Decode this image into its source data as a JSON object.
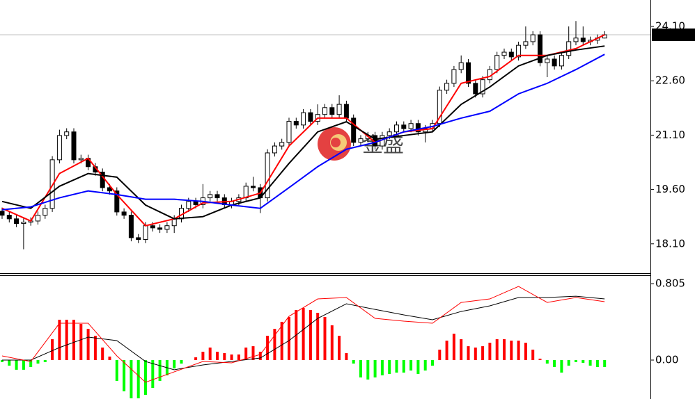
{
  "chart_data": [
    {
      "type": "candlestick",
      "open": [
        19.0,
        18.89,
        18.79,
        18.66,
        18.7,
        18.73,
        18.89,
        19.08,
        20.42,
        21.09,
        21.19,
        20.42,
        20.46,
        20.23,
        20.08,
        19.65,
        19.56,
        18.98,
        18.89,
        18.27,
        18.22,
        18.6,
        18.54,
        18.5,
        18.6,
        18.79,
        19.08,
        19.27,
        19.18,
        19.37,
        19.46,
        19.37,
        19.18,
        19.27,
        19.37,
        19.69,
        19.65,
        19.37,
        20.61,
        20.8,
        20.9,
        21.48,
        21.38,
        21.72,
        21.48,
        21.67,
        21.86,
        21.67,
        21.95,
        21.57,
        20.9,
        21.0,
        21.09,
        20.8,
        21.09,
        21.19,
        21.38,
        21.28,
        21.42,
        21.19,
        21.28,
        21.42,
        22.34,
        22.53,
        22.91,
        23.1,
        22.53,
        22.24,
        22.63,
        22.91,
        23.3,
        23.39,
        23.26,
        23.58,
        23.68,
        23.87,
        23.1,
        23.2,
        23.01,
        23.3,
        23.68,
        23.78,
        23.68,
        23.72,
        23.78
      ],
      "high": [
        19.1,
        18.99,
        18.89,
        18.8,
        18.83,
        18.99,
        19.18,
        20.52,
        21.25,
        21.29,
        21.29,
        20.56,
        20.56,
        20.33,
        20.18,
        19.75,
        19.66,
        19.08,
        18.99,
        18.37,
        18.7,
        18.7,
        18.64,
        18.7,
        18.89,
        19.18,
        19.37,
        19.37,
        19.75,
        19.56,
        19.56,
        19.47,
        19.37,
        19.47,
        19.79,
        19.95,
        19.75,
        20.71,
        20.9,
        21.0,
        21.58,
        21.58,
        21.82,
        21.82,
        21.95,
        21.96,
        21.96,
        22.2,
        22.05,
        21.67,
        21.1,
        21.19,
        21.19,
        21.19,
        21.29,
        21.48,
        21.48,
        21.52,
        21.52,
        21.38,
        21.52,
        22.44,
        22.63,
        23.01,
        23.3,
        23.2,
        22.63,
        22.73,
        23.01,
        23.4,
        23.49,
        23.49,
        23.68,
        24.1,
        23.97,
        23.97,
        23.3,
        23.3,
        23.4,
        24.1,
        24.25,
        24.1,
        23.82,
        23.88,
        23.97
      ],
      "low": [
        18.79,
        18.69,
        18.56,
        17.95,
        18.6,
        18.63,
        18.79,
        18.98,
        20.32,
        20.99,
        20.32,
        20.32,
        20.13,
        19.98,
        19.55,
        19.46,
        18.88,
        18.79,
        18.17,
        18.12,
        18.12,
        18.44,
        18.4,
        18.4,
        18.4,
        18.69,
        18.98,
        19.08,
        19.08,
        19.27,
        19.27,
        19.08,
        19.08,
        19.17,
        19.27,
        19.55,
        18.95,
        19.27,
        20.51,
        20.7,
        20.8,
        21.28,
        21.28,
        21.38,
        21.38,
        21.57,
        21.57,
        21.57,
        21.47,
        20.8,
        20.8,
        20.9,
        20.7,
        20.7,
        20.99,
        21.09,
        21.18,
        21.18,
        21.09,
        20.9,
        21.18,
        21.32,
        22.24,
        22.43,
        22.81,
        22.43,
        22.14,
        22.14,
        22.53,
        22.81,
        23.2,
        23.16,
        23.16,
        23.48,
        23.58,
        23.0,
        22.7,
        22.91,
        22.91,
        23.2,
        23.58,
        23.58,
        23.58,
        23.62,
        23.77
      ],
      "close": [
        18.89,
        18.79,
        18.66,
        18.7,
        18.73,
        18.89,
        19.08,
        20.42,
        21.09,
        21.19,
        20.42,
        20.46,
        20.23,
        20.08,
        19.65,
        19.56,
        18.98,
        18.89,
        18.27,
        18.22,
        18.6,
        18.54,
        18.5,
        18.6,
        18.79,
        19.08,
        19.27,
        19.18,
        19.37,
        19.46,
        19.37,
        19.18,
        19.27,
        19.37,
        19.69,
        19.65,
        19.37,
        20.61,
        20.8,
        20.9,
        21.48,
        21.38,
        21.72,
        21.48,
        21.67,
        21.86,
        21.67,
        21.95,
        21.57,
        20.9,
        21.0,
        21.09,
        20.8,
        21.09,
        21.19,
        21.38,
        21.28,
        21.42,
        21.19,
        21.28,
        21.42,
        22.34,
        22.53,
        22.91,
        23.1,
        22.53,
        22.24,
        22.63,
        22.91,
        23.3,
        23.39,
        23.26,
        23.58,
        23.68,
        23.87,
        23.1,
        23.2,
        23.01,
        23.3,
        23.68,
        23.78,
        23.68,
        23.72,
        23.78,
        23.87
      ],
      "lines": [
        {
          "color": "#ff0000",
          "x": [
            0,
            4,
            8,
            12,
            16,
            20,
            24,
            28,
            32,
            36,
            40,
            44,
            48,
            52,
            56,
            60,
            64,
            68,
            72,
            76,
            80,
            84
          ],
          "values": [
            19.08,
            18.73,
            20.04,
            20.46,
            19.46,
            18.6,
            18.79,
            19.23,
            19.27,
            19.5,
            20.8,
            21.57,
            21.57,
            20.9,
            21.19,
            21.28,
            22.53,
            22.72,
            23.3,
            23.3,
            23.49,
            23.87
          ]
        },
        {
          "color": "#000000",
          "x": [
            0,
            4,
            8,
            12,
            16,
            20,
            24,
            28,
            32,
            36,
            40,
            44,
            48,
            52,
            56,
            60,
            64,
            68,
            72,
            76,
            80,
            84
          ],
          "values": [
            19.27,
            19.08,
            19.69,
            20.04,
            19.94,
            19.17,
            18.79,
            18.85,
            19.17,
            19.37,
            20.32,
            21.19,
            21.47,
            20.99,
            21.09,
            21.19,
            21.95,
            22.43,
            23.01,
            23.3,
            23.45,
            23.56
          ]
        },
        {
          "color": "#0000ff",
          "x": [
            0,
            4,
            8,
            12,
            16,
            20,
            24,
            28,
            32,
            36,
            40,
            44,
            48,
            52,
            56,
            60,
            64,
            68,
            72,
            76,
            80,
            84
          ],
          "values": [
            19.04,
            19.12,
            19.37,
            19.56,
            19.46,
            19.33,
            19.33,
            19.27,
            19.17,
            19.08,
            19.65,
            20.23,
            20.71,
            20.9,
            21.19,
            21.34,
            21.57,
            21.76,
            22.24,
            22.53,
            22.91,
            23.33
          ]
        }
      ],
      "ylim": [
        17.29,
        24.83
      ],
      "yticks": [
        {
          "value": 18.1,
          "label": "18.10"
        },
        {
          "value": 19.6,
          "label": "19.60"
        },
        {
          "value": 21.1,
          "label": "21.10"
        },
        {
          "value": 22.6,
          "label": "22.60"
        },
        {
          "value": 24.1,
          "label": "24.10"
        }
      ],
      "current": 23.87,
      "watermark": "金盛"
    },
    {
      "type": "macd",
      "values": [
        -0.022,
        -0.059,
        -0.102,
        -0.102,
        -0.073,
        -0.037,
        -0.022,
        0.22,
        0.425,
        0.425,
        0.425,
        0.381,
        0.329,
        0.256,
        0.132,
        0.037,
        -0.22,
        -0.329,
        -0.403,
        -0.403,
        -0.366,
        -0.293,
        -0.22,
        -0.161,
        -0.088,
        -0.037,
        0,
        0.029,
        0.088,
        0.132,
        0.088,
        0.073,
        0.059,
        0.059,
        0.132,
        0.146,
        0.088,
        0.256,
        0.329,
        0.403,
        0.454,
        0.527,
        0.549,
        0.527,
        0.498,
        0.454,
        0.366,
        0.256,
        0.073,
        -0.037,
        -0.183,
        -0.205,
        -0.183,
        -0.161,
        -0.146,
        -0.132,
        -0.132,
        -0.11,
        -0.146,
        -0.11,
        -0.059,
        0.11,
        0.205,
        0.278,
        0.22,
        0.146,
        0.132,
        0.146,
        0.183,
        0.22,
        0.22,
        0.205,
        0.205,
        0.183,
        0.11,
        0.015,
        -0.037,
        -0.073,
        -0.132,
        -0.059,
        -0.022,
        -0.029,
        -0.059,
        -0.073,
        -0.073
      ],
      "colors": {
        "up": "#ff0000",
        "down": "#00ff00"
      },
      "lines": [
        {
          "color": "#000000",
          "x": [
            0,
            4,
            8,
            12,
            16,
            20,
            24,
            28,
            32,
            36,
            40,
            44,
            48,
            52,
            56,
            60,
            64,
            68,
            72,
            76,
            80,
            84
          ],
          "values": [
            0,
            0,
            0.132,
            0.242,
            0.205,
            -0.015,
            -0.102,
            -0.051,
            -0.015,
            0.022,
            0.205,
            0.439,
            0.593,
            0.534,
            0.476,
            0.425,
            0.512,
            0.571,
            0.659,
            0.659,
            0.673,
            0.644
          ]
        },
        {
          "color": "#ff0000",
          "x": [
            0,
            4,
            8,
            12,
            16,
            20,
            24,
            28,
            32,
            36,
            40,
            44,
            48,
            52,
            56,
            60,
            64,
            68,
            72,
            76,
            80,
            84
          ],
          "values": [
            0.044,
            -0.015,
            0.388,
            0.388,
            0.044,
            -0.234,
            -0.124,
            -0.015,
            -0.029,
            0.059,
            0.461,
            0.644,
            0.659,
            0.439,
            0.41,
            0.388,
            0.607,
            0.644,
            0.776,
            0.607,
            0.659,
            0.615
          ]
        }
      ],
      "ylim": [
        -0.41,
        0.886
      ],
      "yticks": [
        {
          "value": 0,
          "label": "0.00"
        },
        0.805
      ]
    }
  ]
}
